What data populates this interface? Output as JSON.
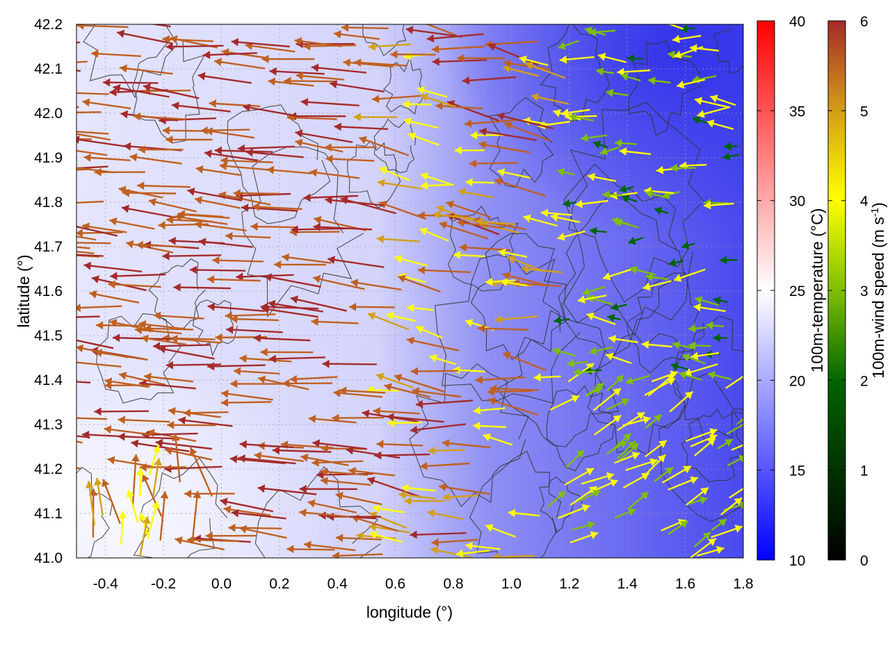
{
  "chart_data": {
    "type": "vector-field",
    "xlabel": "longitude (°)",
    "ylabel": "latitude (°)",
    "xlim": [
      -0.5,
      1.8
    ],
    "ylim": [
      41.0,
      42.2
    ],
    "xticks": [
      "-0.4",
      "-0.2",
      "0.0",
      "0.2",
      "0.4",
      "0.6",
      "0.8",
      "1.0",
      "1.2",
      "1.4",
      "1.6",
      "1.8"
    ],
    "yticks": [
      "41.0",
      "41.1",
      "41.2",
      "41.3",
      "41.4",
      "41.5",
      "41.6",
      "41.7",
      "41.8",
      "41.9",
      "42.0",
      "42.1",
      "42.2"
    ],
    "grid": true,
    "background_field": {
      "name": "100m-temperature",
      "label": "100m-temperature (°C)",
      "range": [
        10,
        40
      ],
      "ticks": [
        "10",
        "15",
        "20",
        "25",
        "30",
        "35",
        "40"
      ],
      "colormap": [
        "#0000ff",
        "#ffffff",
        "#ff0000"
      ]
    },
    "vectors": {
      "name": "100m-wind speed",
      "label": "100m-wind speed (m s-1)",
      "range": [
        0,
        6
      ],
      "ticks": [
        "0",
        "1",
        "2",
        "3",
        "4",
        "5",
        "6"
      ],
      "colormap": [
        "#000000",
        "#006400",
        "#7fbf00",
        "#ffff00",
        "#d4a017",
        "#c06020",
        "#a52a2a"
      ],
      "regions": [
        {
          "area": "west (lon -0.5 to 0.6)",
          "direction": "westward",
          "speed": 6
        },
        {
          "area": "center (lon 0.6 to 1.2)",
          "direction": "westward",
          "speed": 4
        },
        {
          "area": "north-east (lon 1.2 to 1.8, lat 41.5 to 42.2)",
          "direction": "westward",
          "speed": 2
        },
        {
          "area": "south-east (lon 1.1 to 1.8, lat 41.0 to 41.4)",
          "direction": "north-eastward",
          "speed": 2.5
        },
        {
          "area": "south-west corner (lon -0.5 to 0.0, lat 41.0 to 41.2)",
          "direction": "northward",
          "speed": 3
        }
      ]
    },
    "contours": {
      "color": "#333333"
    }
  }
}
